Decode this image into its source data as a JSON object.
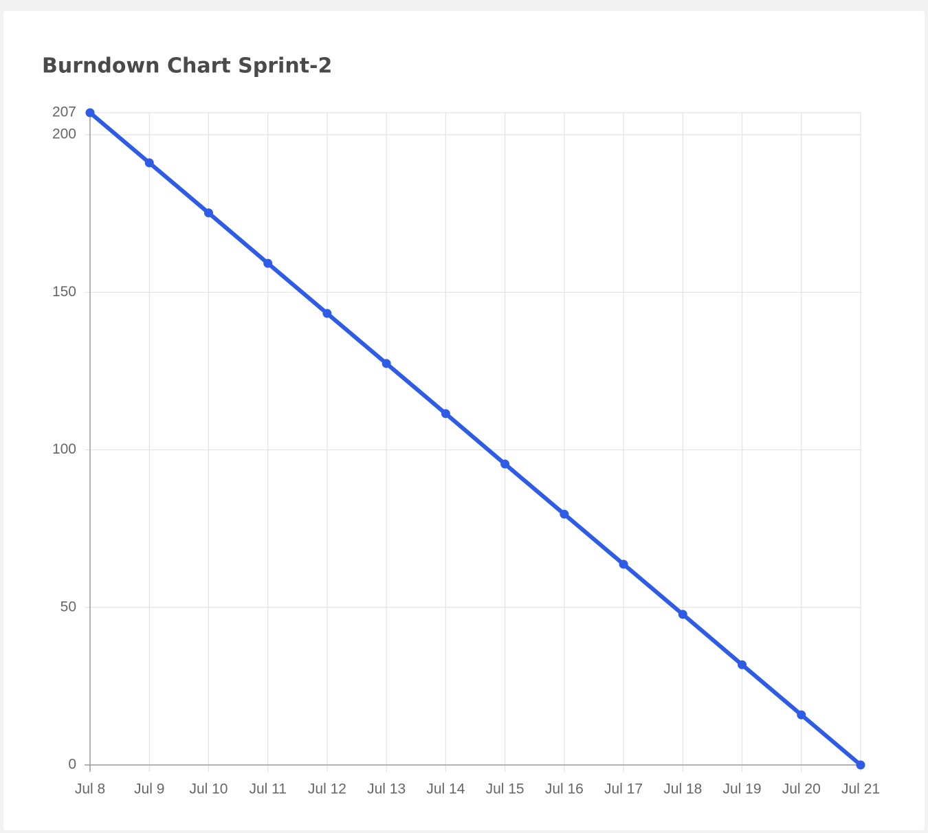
{
  "chart_data": {
    "type": "line",
    "title": "Burndown Chart Sprint-2",
    "xlabel": "",
    "ylabel": "",
    "categories": [
      "Jul 8",
      "Jul 9",
      "Jul 10",
      "Jul 11",
      "Jul 12",
      "Jul 13",
      "Jul 14",
      "Jul 15",
      "Jul 16",
      "Jul 17",
      "Jul 18",
      "Jul 19",
      "Jul 20",
      "Jul 21"
    ],
    "series": [
      {
        "values": [
          207,
          191.1,
          175.2,
          159.2,
          143.3,
          127.4,
          111.5,
          95.5,
          79.6,
          63.7,
          47.8,
          31.8,
          15.9,
          0
        ]
      }
    ],
    "ylim": [
      0,
      207
    ],
    "yticks": [
      "0",
      "50",
      "100",
      "150",
      "200",
      "207"
    ],
    "grid": true,
    "legend": "none",
    "colors": {
      "line": "#2e5ce6",
      "grid": "#e2e2e2",
      "axis": "#999999",
      "tick_text": "#666666",
      "title": "#4a4a4a",
      "background": "#f2f2f2",
      "card": "#ffffff"
    }
  }
}
